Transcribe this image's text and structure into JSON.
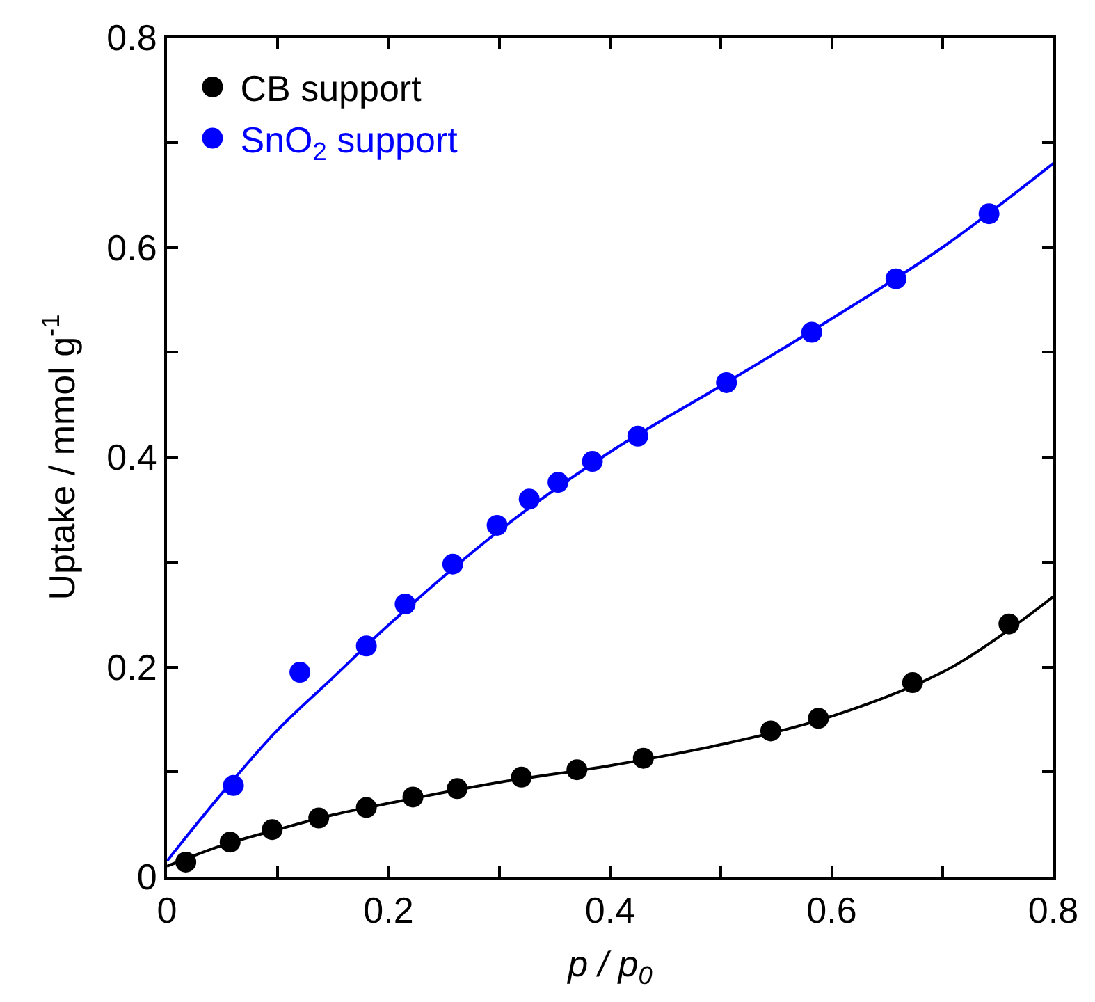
{
  "chart_data": {
    "type": "scatter",
    "xlabel": "p / p$_{0}$",
    "ylabel": "Uptake / mmol g$^{-1}$",
    "xlim": [
      0,
      0.8
    ],
    "ylim": [
      0,
      0.8
    ],
    "xticks": [
      0,
      {
        "value": 0.1,
        "label": null
      },
      0.2,
      {
        "value": 0.3,
        "label": null
      },
      0.4,
      {
        "value": 0.5,
        "label": null
      },
      0.6,
      {
        "value": 0.7,
        "label": null
      },
      0.8
    ],
    "yticks": [
      0,
      {
        "value": 0.1,
        "label": null
      },
      0.2,
      {
        "value": 0.3,
        "label": null
      },
      0.4,
      {
        "value": 0.5,
        "label": null
      },
      0.6,
      {
        "value": 0.7,
        "label": null
      },
      0.8
    ],
    "legend": "top left",
    "marker": "circle",
    "series": [
      {
        "name": "CB support",
        "color": "#000000",
        "x": [
          0.017,
          0.057,
          0.095,
          0.137,
          0.18,
          0.222,
          0.262,
          0.32,
          0.37,
          0.43,
          0.545,
          0.588,
          0.673,
          0.76
        ],
        "values": [
          0.014,
          0.033,
          0.045,
          0.056,
          0.066,
          0.076,
          0.084,
          0.095,
          0.102,
          0.113,
          0.139,
          0.151,
          0.185,
          0.241
        ]
      },
      {
        "name": "SnO$_{2}$ support",
        "color": "#0000ff",
        "x": [
          0.06,
          0.12,
          0.18,
          0.215,
          0.258,
          0.298,
          0.327,
          0.353,
          0.384,
          0.425,
          0.505,
          0.582,
          0.658,
          0.742
        ],
        "values": [
          0.087,
          0.195,
          0.22,
          0.26,
          0.298,
          0.335,
          0.36,
          0.376,
          0.396,
          0.42,
          0.471,
          0.519,
          0.57,
          0.632
        ]
      },
      {
        "type": "line",
        "marker": "none",
        "color": "#000000",
        "x": [
          0,
          0.05,
          0.1,
          0.15,
          0.2,
          0.3,
          0.4,
          0.5,
          0.6,
          0.7,
          0.75,
          0.8
        ],
        "values": [
          0.01,
          0.03,
          0.045,
          0.059,
          0.07,
          0.09,
          0.106,
          0.126,
          0.153,
          0.195,
          0.228,
          0.267
        ]
      },
      {
        "type": "line",
        "marker": "none",
        "color": "#0000ff",
        "x": [
          0,
          0.05,
          0.1,
          0.15,
          0.2,
          0.3,
          0.4,
          0.5,
          0.6,
          0.7,
          0.8
        ],
        "values": [
          0.015,
          0.08,
          0.14,
          0.19,
          0.24,
          0.33,
          0.405,
          0.468,
          0.532,
          0.6,
          0.68
        ]
      }
    ]
  }
}
